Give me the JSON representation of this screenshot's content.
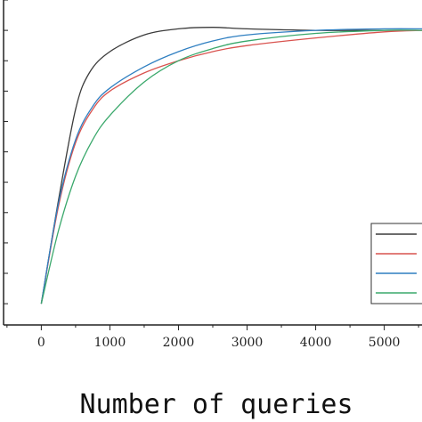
{
  "chart_data": {
    "type": "line",
    "title": "",
    "xlabel": "Number of queries",
    "ylabel": "",
    "xlim": [
      -550,
      5550
    ],
    "ylim": [
      0.03,
      1.1
    ],
    "x_ticks": [
      0,
      1000,
      2000,
      3000,
      4000,
      5000
    ],
    "x_tick_labels": [
      "0",
      "1000",
      "2000",
      "3000",
      "4000",
      "5000"
    ],
    "y_minor_ticks": [
      0.1,
      0.2,
      0.3,
      0.4,
      0.5,
      0.6,
      0.7,
      0.8,
      0.9,
      1.0,
      1.1
    ],
    "grid": false,
    "legend_position": "lower-right",
    "series": [
      {
        "color": "#3b3b3b",
        "x": [
          0,
          250,
          500,
          700,
          1000,
          1500,
          2000,
          2500,
          3000,
          4000,
          5000,
          5550
        ],
        "y": [
          0.1,
          0.44,
          0.74,
          0.86,
          0.93,
          0.985,
          1.005,
          1.01,
          1.005,
          1.0,
          1.0,
          1.0
        ]
      },
      {
        "color": "#d9534f",
        "x": [
          0,
          250,
          500,
          750,
          1000,
          1500,
          2000,
          2500,
          3000,
          4000,
          5000,
          5550
        ],
        "y": [
          0.1,
          0.42,
          0.63,
          0.74,
          0.8,
          0.86,
          0.9,
          0.93,
          0.95,
          0.975,
          0.995,
          1.0
        ]
      },
      {
        "color": "#2f7fc1",
        "x": [
          0,
          250,
          500,
          750,
          1000,
          1500,
          2000,
          2500,
          3000,
          4000,
          5000,
          5550
        ],
        "y": [
          0.1,
          0.43,
          0.64,
          0.75,
          0.81,
          0.88,
          0.93,
          0.965,
          0.985,
          1.0,
          1.005,
          1.005
        ]
      },
      {
        "color": "#3aa86b",
        "x": [
          0,
          250,
          500,
          750,
          1000,
          1500,
          2000,
          2500,
          3000,
          4000,
          5000,
          5550
        ],
        "y": [
          0.1,
          0.34,
          0.52,
          0.64,
          0.72,
          0.83,
          0.9,
          0.94,
          0.965,
          0.99,
          1.0,
          1.0
        ]
      }
    ]
  }
}
